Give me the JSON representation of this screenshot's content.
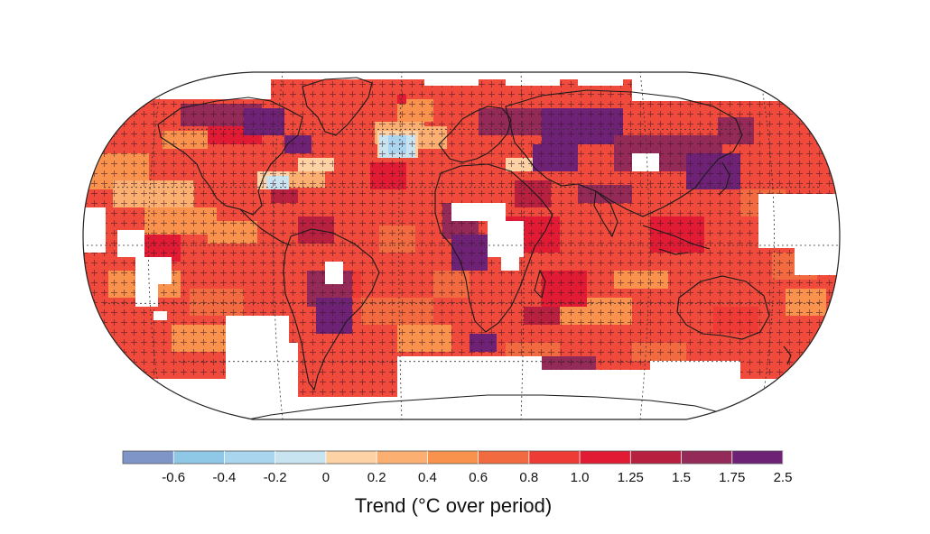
{
  "legend": {
    "title": "Trend (°C over period)",
    "bins": [
      {
        "color": "#7f95c8",
        "tick": ""
      },
      {
        "color": "#8fc7e7",
        "tick": "-0.6"
      },
      {
        "color": "#a9d6ee",
        "tick": "-0.4"
      },
      {
        "color": "#c8e4f1",
        "tick": "-0.2"
      },
      {
        "color": "#fdd3a5",
        "tick": "0"
      },
      {
        "color": "#fbb072",
        "tick": "0.2"
      },
      {
        "color": "#f8924c",
        "tick": "0.4"
      },
      {
        "color": "#f26a3f",
        "tick": "0.6"
      },
      {
        "color": "#ef3b36",
        "tick": "0.8"
      },
      {
        "color": "#e11b34",
        "tick": "1.0"
      },
      {
        "color": "#b7203f",
        "tick": "1.25"
      },
      {
        "color": "#942a57",
        "tick": "1.5"
      },
      {
        "color": "#6e2275",
        "tick": "1.75"
      }
    ],
    "last_tick": "2.5"
  },
  "map": {
    "projection": "robinson",
    "missing_data_color": "#ffffff",
    "coastline_color": "#1a1a1a",
    "grid_style": "dotted",
    "significance_marker": "+"
  }
}
